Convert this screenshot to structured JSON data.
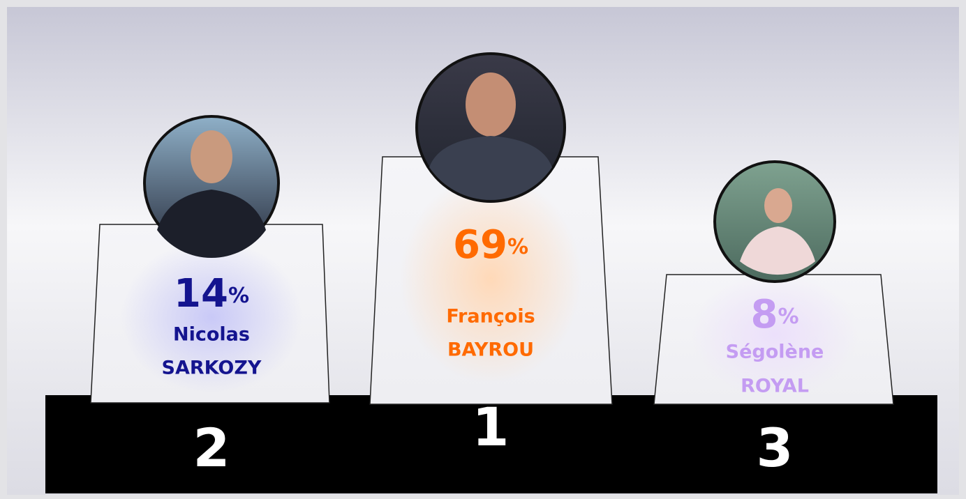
{
  "podium": [
    {
      "rank": "2",
      "value": 14,
      "unit": "%",
      "first_name": "Nicolas",
      "last_name": "SARKOZY",
      "color": "#14148f"
    },
    {
      "rank": "1",
      "value": 69,
      "unit": "%",
      "first_name": "François",
      "last_name": "BAYROU",
      "color": "#ff6a00"
    },
    {
      "rank": "3",
      "value": 8,
      "unit": "%",
      "first_name": "Ségolène",
      "last_name": "ROYAL",
      "color": "#c49cf2"
    }
  ]
}
